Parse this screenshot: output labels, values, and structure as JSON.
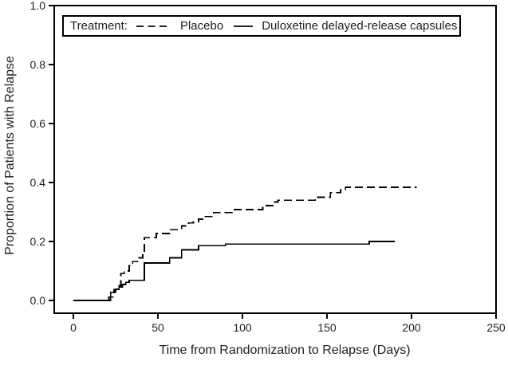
{
  "colors": {
    "line": "#000000",
    "text": "#1f1f1f",
    "background": "#ffffff"
  },
  "chart_data": {
    "type": "line",
    "step": true,
    "title": "",
    "xlabel": "Time from Randomization to Relapse (Days)",
    "ylabel": "Proportion of Patients with Relapse",
    "xlim": [
      0,
      250
    ],
    "ylim": [
      0,
      1.0
    ],
    "grid": false,
    "xticks": [
      {
        "v": 0,
        "label": "0"
      },
      {
        "v": 50,
        "label": "50"
      },
      {
        "v": 100,
        "label": "100"
      },
      {
        "v": 150,
        "label": "150"
      },
      {
        "v": 200,
        "label": "200"
      },
      {
        "v": 250,
        "label": "250"
      }
    ],
    "yticks": [
      {
        "v": 0.0,
        "label": "0.0"
      },
      {
        "v": 0.2,
        "label": "0.2"
      },
      {
        "v": 0.4,
        "label": "0.4"
      },
      {
        "v": 0.6,
        "label": "0.6"
      },
      {
        "v": 0.8,
        "label": "0.8"
      },
      {
        "v": 1.0,
        "label": "1.0"
      }
    ],
    "legend": {
      "title": "Treatment:",
      "position": "top-inside-box",
      "entries": [
        {
          "label": "Placebo",
          "line_style": "dashed"
        },
        {
          "label": "Duloxetine delayed-release capsules",
          "line_style": "solid"
        }
      ]
    },
    "series": [
      {
        "name": "Placebo",
        "line_style": "dashed",
        "color": "#000000",
        "points": [
          [
            0,
            0
          ],
          [
            21,
            0
          ],
          [
            22,
            0.012
          ],
          [
            24,
            0.037
          ],
          [
            26,
            0.05
          ],
          [
            28,
            0.091
          ],
          [
            30,
            0.1
          ],
          [
            33,
            0.118
          ],
          [
            35,
            0.132
          ],
          [
            38,
            0.145
          ],
          [
            41,
            0.154
          ],
          [
            42,
            0.213
          ],
          [
            49,
            0.227
          ],
          [
            57,
            0.24
          ],
          [
            64,
            0.253
          ],
          [
            68,
            0.263
          ],
          [
            71,
            0.267
          ],
          [
            74,
            0.276
          ],
          [
            77,
            0.285
          ],
          [
            83,
            0.298
          ],
          [
            94,
            0.308
          ],
          [
            112,
            0.322
          ],
          [
            118,
            0.334
          ],
          [
            121,
            0.34
          ],
          [
            143,
            0.35
          ],
          [
            152,
            0.366
          ],
          [
            158,
            0.375
          ],
          [
            161,
            0.384
          ],
          [
            203,
            0.384
          ]
        ]
      },
      {
        "name": "Duloxetine delayed-release capsules",
        "line_style": "solid",
        "color": "#000000",
        "points": [
          [
            0,
            0
          ],
          [
            20,
            0
          ],
          [
            21,
            0.011
          ],
          [
            22,
            0.028
          ],
          [
            25,
            0.038
          ],
          [
            27,
            0.046
          ],
          [
            29,
            0.054
          ],
          [
            31,
            0.062
          ],
          [
            33,
            0.068
          ],
          [
            42,
            0.127
          ],
          [
            57,
            0.145
          ],
          [
            64,
            0.172
          ],
          [
            74,
            0.186
          ],
          [
            90,
            0.191
          ],
          [
            175,
            0.2
          ],
          [
            190,
            0.2
          ]
        ]
      }
    ]
  }
}
